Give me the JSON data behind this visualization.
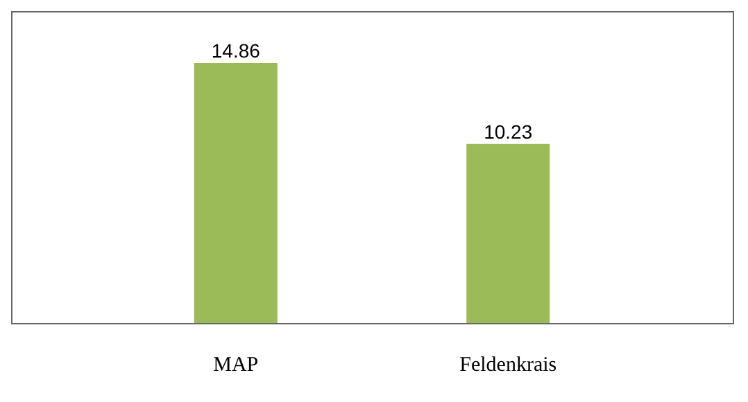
{
  "chart_data": {
    "type": "bar",
    "categories": [
      "MAP",
      "Feldenkrais"
    ],
    "values": [
      14.86,
      10.23
    ],
    "color": "#9bbb59",
    "data_labels": true
  }
}
